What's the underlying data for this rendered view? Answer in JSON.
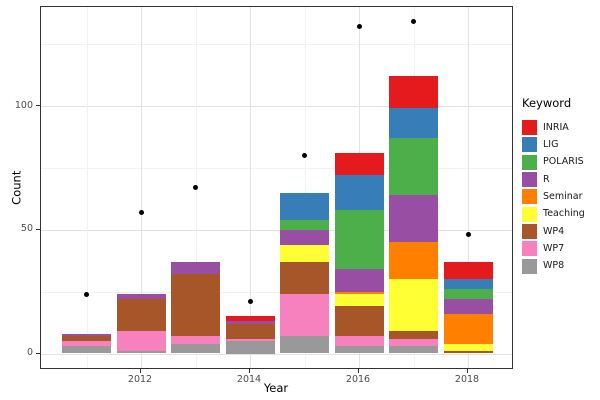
{
  "chart_data": {
    "type": "bar",
    "subtype": "stacked-bars-with-total-points",
    "title": "",
    "xlabel": "Year",
    "ylabel": "Count",
    "legend_title": "Keyword",
    "legend_position": "right",
    "grid": true,
    "background": "white",
    "panel_border_color": "#333333",
    "x": [
      2011,
      2012,
      2013,
      2014,
      2015,
      2016,
      2017,
      2018
    ],
    "x_tick_labels": [
      "2012",
      "2014",
      "2016",
      "2018"
    ],
    "y_tick_labels": [
      "0",
      "50",
      "100"
    ],
    "y_major_gridlines": [
      0,
      50,
      100
    ],
    "y_minor_gridlines": [
      25,
      75,
      125
    ],
    "x_major_gridline_years": [
      2012,
      2014,
      2016,
      2018
    ],
    "x_minor_gridline_years": [
      2011,
      2013,
      2015,
      2017
    ],
    "ylim": [
      0,
      140
    ],
    "stack_order_bottom_to_top": [
      "WP8",
      "WP7",
      "WP4",
      "Teaching",
      "Seminar",
      "R",
      "POLARIS",
      "LIG",
      "INRIA"
    ],
    "series": [
      {
        "name": "INRIA",
        "color": "#E41A1C",
        "values": [
          0,
          0,
          0,
          2,
          0,
          9,
          13,
          7
        ]
      },
      {
        "name": "LIG",
        "color": "#377EB8",
        "values": [
          0,
          0,
          0,
          0,
          11,
          14,
          12,
          4
        ]
      },
      {
        "name": "POLARIS",
        "color": "#4DAF4A",
        "values": [
          0,
          0,
          0,
          0,
          4,
          24,
          23,
          4
        ]
      },
      {
        "name": "R",
        "color": "#984EA3",
        "values": [
          1,
          2,
          5,
          1,
          6,
          9,
          19,
          6
        ]
      },
      {
        "name": "Seminar",
        "color": "#FF7F00",
        "values": [
          0,
          0,
          0,
          0,
          0,
          1,
          15,
          12
        ]
      },
      {
        "name": "Teaching",
        "color": "#FFFF33",
        "values": [
          0,
          0,
          0,
          0,
          7,
          5,
          21,
          3
        ]
      },
      {
        "name": "WP4",
        "color": "#A65628",
        "values": [
          2,
          13,
          25,
          6,
          13,
          12,
          3,
          1
        ]
      },
      {
        "name": "WP7",
        "color": "#F781BF",
        "values": [
          2,
          8,
          3,
          1,
          17,
          4,
          3,
          0
        ]
      },
      {
        "name": "WP8",
        "color": "#999999",
        "values": [
          3,
          1,
          4,
          5,
          7,
          3,
          3,
          0
        ]
      }
    ],
    "bar_totals": [
      8,
      24,
      37,
      15,
      65,
      81,
      112,
      37
    ],
    "points": {
      "name": "yearly-total-points",
      "color": "#000000",
      "values": [
        24,
        57,
        67,
        21,
        80,
        132,
        134,
        48
      ]
    }
  }
}
